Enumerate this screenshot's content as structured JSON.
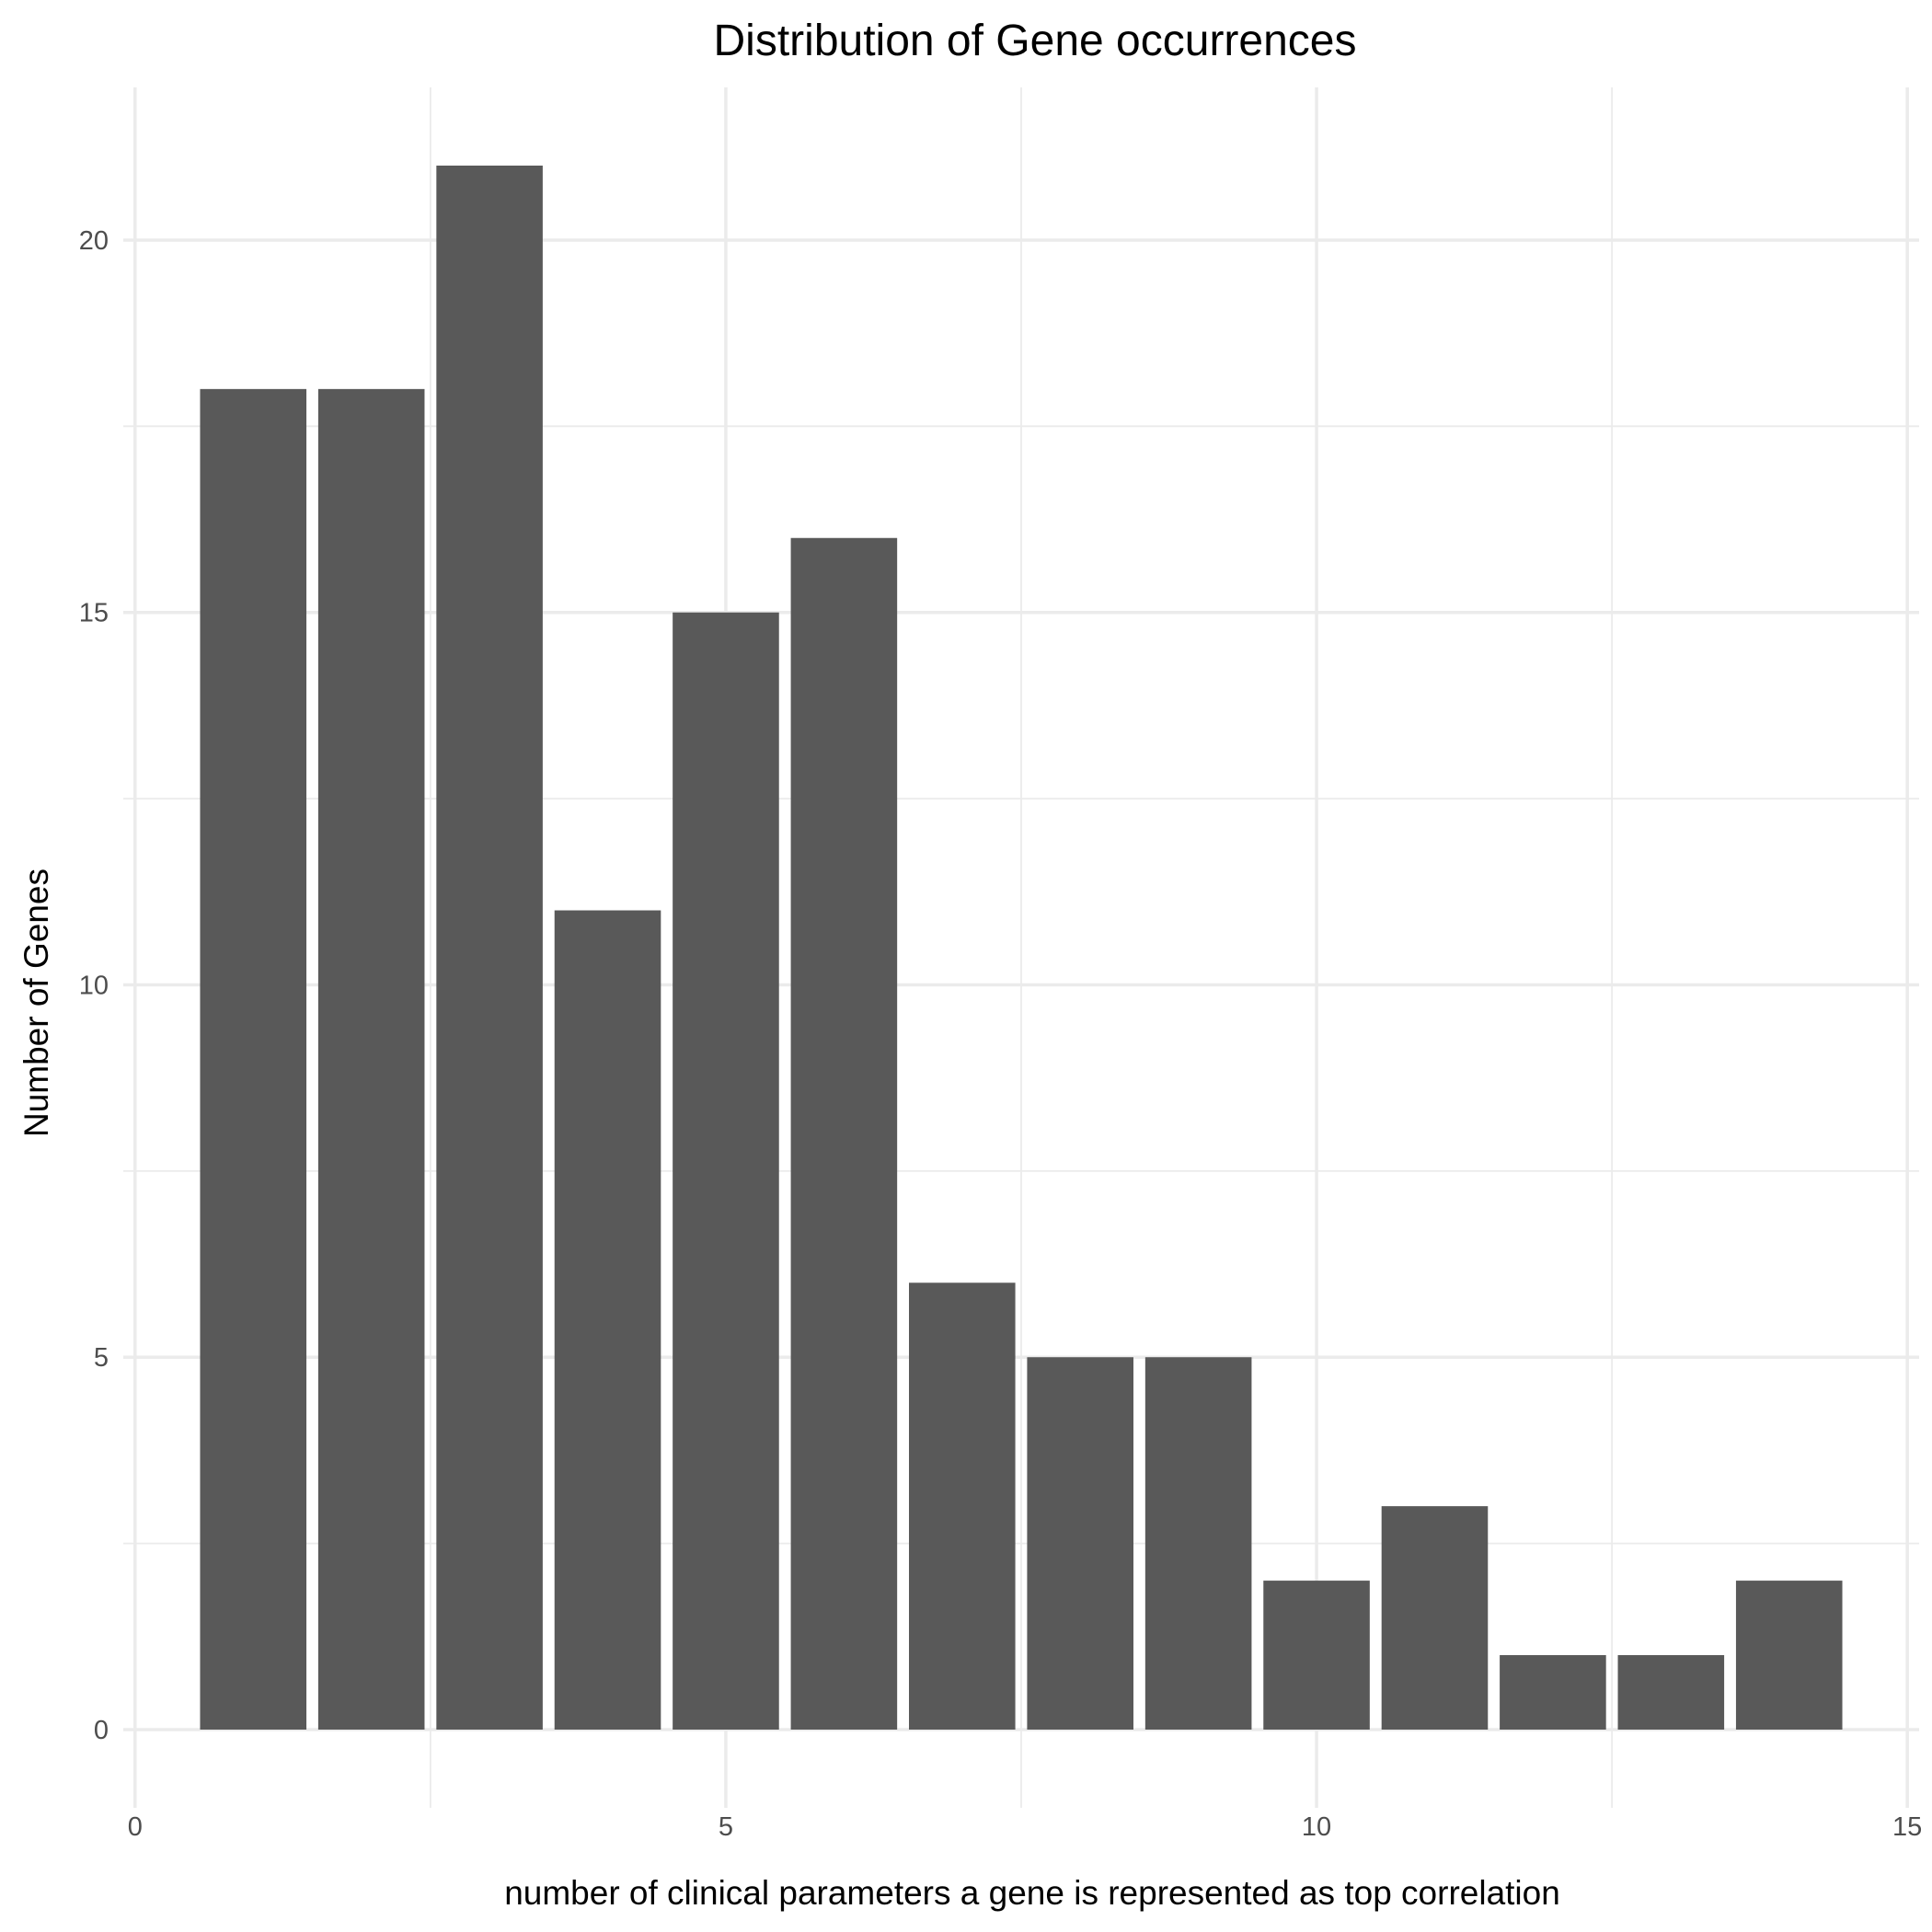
{
  "chart_data": {
    "type": "bar",
    "title": "Distribution of Gene occurrences",
    "xlabel": "number of clinical parameters a gene is represented as top correlation",
    "ylabel": "Number of Genes",
    "x": [
      1,
      2,
      3,
      4,
      5,
      6,
      7,
      8,
      9,
      10,
      11,
      12,
      13,
      14
    ],
    "values": [
      18,
      18,
      21,
      11,
      15,
      16,
      6,
      5,
      5,
      2,
      3,
      1,
      1,
      2
    ],
    "xlim": [
      -0.1,
      15.1
    ],
    "ylim": [
      -1.05,
      22.05
    ],
    "x_ticks": [
      0,
      5,
      10,
      15
    ],
    "x_tick_labels": [
      "0",
      "5",
      "10",
      "15"
    ],
    "x_minor_ticks": [
      2.5,
      7.5,
      12.5
    ],
    "y_ticks": [
      0,
      5,
      10,
      15,
      20
    ],
    "y_tick_labels": [
      "0",
      "5",
      "10",
      "15",
      "20"
    ],
    "y_minor_ticks": [
      2.5,
      7.5,
      12.5,
      17.5
    ],
    "bar_width": 0.9,
    "bar_color": "#595959",
    "grid": true,
    "legend": false
  }
}
